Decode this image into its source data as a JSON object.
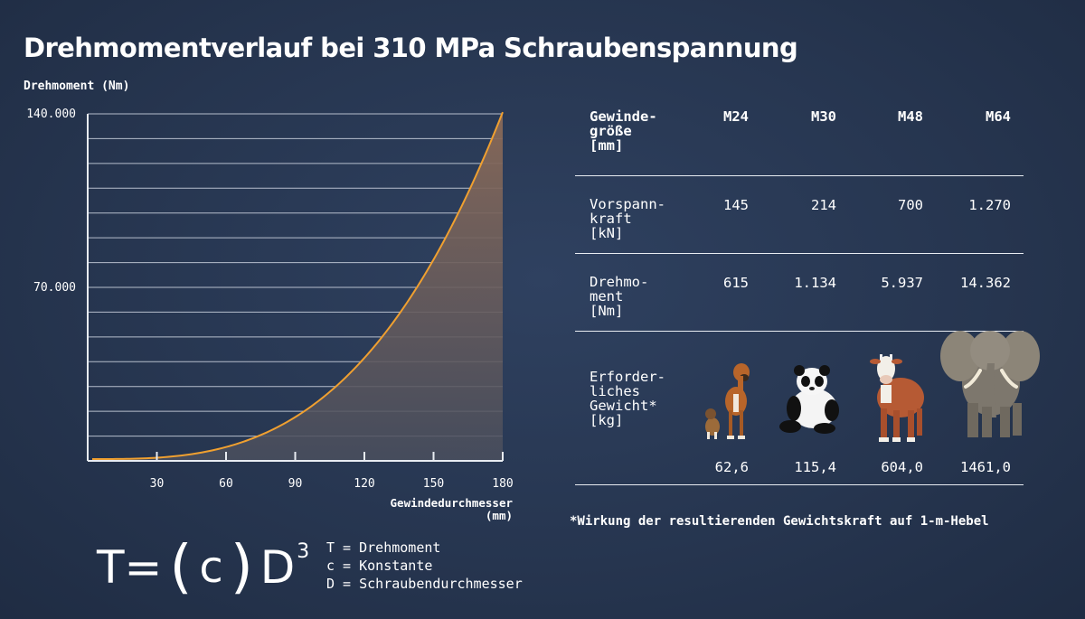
{
  "title": "Drehmomentverlauf bei 310 MPa Schraubenspannung",
  "chart_data": {
    "type": "area",
    "title": "Drehmomentverlauf bei 310 MPa Schraubenspannung",
    "ylabel": "Drehmoment (Nm)",
    "xlabel_line1": "Gewindedurchmesser",
    "xlabel_line2": "(mm)",
    "ytick_labels": [
      "140.000",
      "70.000"
    ],
    "yticks": [
      140000,
      70000
    ],
    "xticks": [
      30,
      60,
      90,
      120,
      150,
      180
    ],
    "xtick_labels": [
      "30",
      "60",
      "90",
      "120",
      "150",
      "180"
    ],
    "xlim": [
      0,
      180
    ],
    "ylim": [
      0,
      140000
    ],
    "grid": true,
    "series": [
      {
        "x": [
          0,
          15,
          30,
          45,
          60,
          75,
          90,
          105,
          120,
          135,
          150,
          165,
          180
        ],
        "y": [
          0,
          81,
          648,
          2187,
          5184,
          10125,
          17496,
          27783,
          41472,
          59049,
          81000,
          107811,
          139968
        ]
      }
    ],
    "colors": {
      "line": "#f0a030",
      "fill_top": "#8a6a58",
      "grid": "#cfd6e2"
    }
  },
  "formula": {
    "lhs": "T",
    "eq": "=",
    "open": "(",
    "c": "c",
    "close": ")",
    "d": "D",
    "exp": "3"
  },
  "legend": [
    "T = Drehmoment",
    "c = Konstante",
    "D = Schraubendurchmesser"
  ],
  "table": {
    "header": {
      "label": [
        "Gewinde-",
        "größe",
        "[mm]"
      ],
      "cols": [
        "M24",
        "M30",
        "M48",
        "M64"
      ]
    },
    "rows": [
      {
        "label": [
          "Vorspann-",
          "kraft",
          "[kN]"
        ],
        "values": [
          "145",
          "214",
          "700",
          "1.270"
        ]
      },
      {
        "label": [
          "Drehmo-",
          "ment",
          "[Nm]"
        ],
        "values": [
          "615",
          "1.134",
          "5.937",
          "14.362"
        ]
      },
      {
        "label": [
          "Erforder-",
          "liches",
          "Gewicht*",
          "[kg]"
        ],
        "values": [
          "62,6",
          "115,4",
          "604,0",
          "1461,0"
        ]
      }
    ],
    "animals": [
      "dogs-icon",
      "panda-icon",
      "cow-icon",
      "elephant-icon"
    ]
  },
  "footnote": "*Wirkung der resultierenden Gewichtskraft auf 1-m-Hebel"
}
